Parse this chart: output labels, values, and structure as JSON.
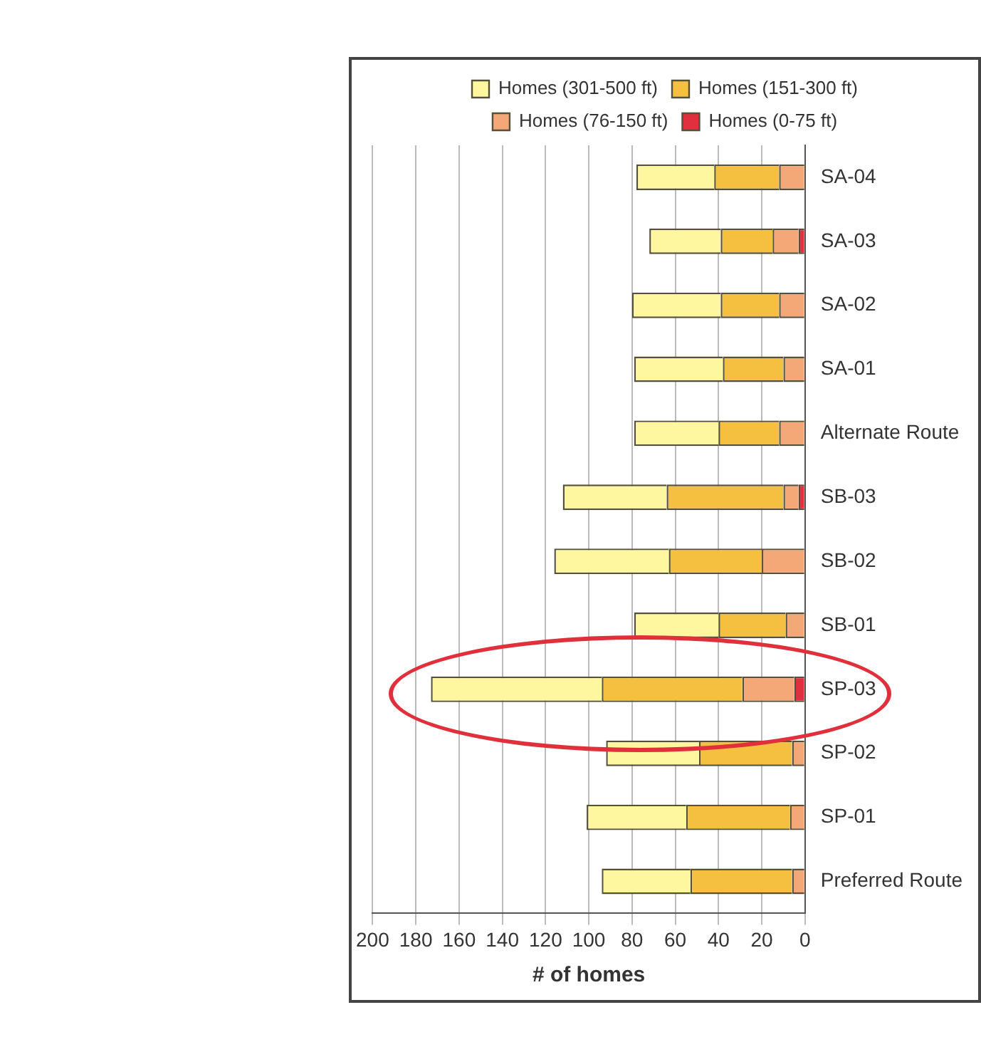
{
  "chart_data": {
    "type": "bar",
    "orientation": "horizontal",
    "stacked": true,
    "xlabel": "# of homes",
    "categories": [
      "SA-04",
      "SA-03",
      "SA-02",
      "SA-01",
      "Alternate Route",
      "SB-03",
      "SB-02",
      "SB-01",
      "SP-03",
      "SP-02",
      "SP-01",
      "Preferred Route"
    ],
    "series": [
      {
        "name": "Homes (0-75 ft)",
        "color": "#e03040",
        "values": [
          0,
          3,
          0,
          0,
          0,
          3,
          0,
          0,
          5,
          0,
          0,
          0
        ]
      },
      {
        "name": "Homes (76-150 ft)",
        "color": "#f4a878",
        "values": [
          12,
          12,
          12,
          10,
          12,
          7,
          20,
          9,
          24,
          6,
          7,
          6
        ]
      },
      {
        "name": "Homes (151-300 ft)",
        "color": "#f5c040",
        "values": [
          30,
          24,
          27,
          28,
          28,
          54,
          43,
          31,
          65,
          43,
          48,
          47
        ]
      },
      {
        "name": "Homes (301-500 ft)",
        "color": "#fff6a0",
        "values": [
          36,
          33,
          41,
          41,
          39,
          48,
          53,
          39,
          79,
          43,
          46,
          41
        ]
      }
    ],
    "xlim": [
      200,
      0
    ],
    "xticks": [
      200,
      180,
      160,
      140,
      120,
      100,
      80,
      60,
      40,
      20,
      0
    ],
    "grid": "x",
    "legend": "top"
  }
}
